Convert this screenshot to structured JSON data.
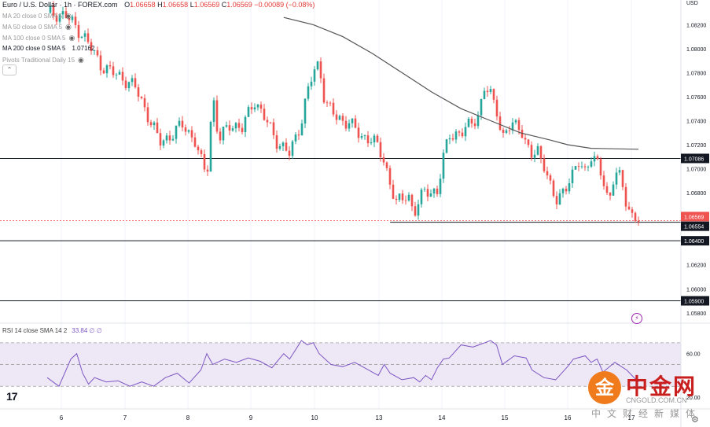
{
  "header": {
    "symbol": "Euro / U.S. Dollar · 1h · FOREX.com",
    "ohlc": [
      {
        "k": "O",
        "v": "1.06658"
      },
      {
        "k": "H",
        "v": "1.06658"
      },
      {
        "k": "L",
        "v": "1.06569"
      },
      {
        "k": "C",
        "v": "1.06569"
      }
    ],
    "change": "−0.00089 (−0.08%)"
  },
  "indicators": [
    {
      "label": "MA 20 close 0 SMA 5",
      "value": ""
    },
    {
      "label": "MA 50 close 0 SMA 5",
      "value": ""
    },
    {
      "label": "MA 100 close 0 SMA 5",
      "value": ""
    },
    {
      "label": "MA 200 close 0 SMA 5",
      "value": "1.07162"
    },
    {
      "label": "Pivots Traditional Daily 15",
      "value": ""
    }
  ],
  "rsi_legend": {
    "label": "RSI 14 close SMA 14 2",
    "value": "33.84 ∅ ∅"
  },
  "currency": "USD",
  "watermark": {
    "mark": "金",
    "name": "中金网",
    "domain": "CNGOLD.COM.CN",
    "sub": "中文财经新媒体"
  },
  "icons": {
    "eye": "eye-icon",
    "collapse": "chevron-up-icon",
    "alert": "bolt-icon",
    "settings": "gear-icon",
    "logo": "tradingview-logo"
  },
  "colors": {
    "up": "#26a69a",
    "down": "#ef5350",
    "ma": "#555555",
    "rsi": "#7e57c2",
    "rsi_band": "#ede7f6"
  },
  "chart_data": {
    "type": "candlestick",
    "price_axis": {
      "ticks": [
        "1.08200",
        "1.08000",
        "1.07800",
        "1.07600",
        "1.07400",
        "1.07200",
        "1.07000",
        "1.06800",
        "1.06600",
        "1.06200",
        "1.06000",
        "1.05800"
      ],
      "ylim": [
        1.0572,
        1.0834
      ]
    },
    "time_axis": {
      "labels": [
        "6",
        "7",
        "8",
        "9",
        "10",
        "13",
        "14",
        "15",
        "16",
        "17"
      ]
    },
    "price_labels": [
      {
        "price": 1.07086,
        "text": "1.07086",
        "style": "dark"
      },
      {
        "price": 1.06569,
        "text": "1.06569",
        "style": "red"
      },
      {
        "price": 1.06554,
        "text": "1.06554",
        "style": "dark"
      },
      {
        "price": 1.064,
        "text": "1.06400",
        "style": "dark"
      },
      {
        "price": 1.059,
        "text": "1.05900",
        "style": "dark"
      }
    ],
    "horizontal_lines": [
      1.07086,
      1.064,
      1.059
    ],
    "support_line": {
      "price": 1.06554,
      "from": 58,
      "to": 100
    },
    "current_price": 1.06569,
    "ma200": [
      [
        40,
        1.0826
      ],
      [
        45,
        1.082
      ],
      [
        50,
        1.081
      ],
      [
        55,
        1.0796
      ],
      [
        60,
        1.078
      ],
      [
        65,
        1.0764
      ],
      [
        70,
        1.075
      ],
      [
        75,
        1.074
      ],
      [
        80,
        1.073
      ],
      [
        85,
        1.0724
      ],
      [
        88,
        1.072
      ],
      [
        92,
        1.0717
      ],
      [
        100,
        1.07162
      ]
    ],
    "path": [
      [
        0,
        1.083
      ],
      [
        3,
        1.0828
      ],
      [
        6,
        1.0812
      ],
      [
        9,
        1.0787
      ],
      [
        11,
        1.078
      ],
      [
        13,
        1.0775
      ],
      [
        15,
        1.0767
      ],
      [
        17,
        1.0745
      ],
      [
        19,
        1.0722
      ],
      [
        21,
        1.0728
      ],
      [
        23,
        1.0737
      ],
      [
        25,
        1.0723
      ],
      [
        26,
        1.0706
      ],
      [
        27,
        1.0694
      ],
      [
        28,
        1.0763
      ],
      [
        29,
        1.0723
      ],
      [
        31,
        1.0738
      ],
      [
        33,
        1.0733
      ],
      [
        35,
        1.0758
      ],
      [
        37,
        1.074
      ],
      [
        39,
        1.0722
      ],
      [
        41,
        1.0712
      ],
      [
        43,
        1.074
      ],
      [
        44,
        1.0763
      ],
      [
        45,
        1.078
      ],
      [
        46,
        1.0788
      ],
      [
        47,
        1.0755
      ],
      [
        49,
        1.0742
      ],
      [
        51,
        1.0739
      ],
      [
        53,
        1.0727
      ],
      [
        55,
        1.0725
      ],
      [
        57,
        1.0707
      ],
      [
        58,
        1.0688
      ],
      [
        59,
        1.0671
      ],
      [
        60,
        1.0674
      ],
      [
        61,
        1.0681
      ],
      [
        62,
        1.0662
      ],
      [
        63,
        1.0673
      ],
      [
        64,
        1.0683
      ],
      [
        66,
        1.068
      ],
      [
        67,
        1.0708
      ],
      [
        68,
        1.073
      ],
      [
        70,
        1.0728
      ],
      [
        72,
        1.0741
      ],
      [
        73,
        1.0745
      ],
      [
        74,
        1.0767
      ],
      [
        75,
        1.0762
      ],
      [
        76,
        1.0752
      ],
      [
        77,
        1.0724
      ],
      [
        78,
        1.0733
      ],
      [
        79,
        1.0738
      ],
      [
        80,
        1.0737
      ],
      [
        81,
        1.0718
      ],
      [
        82,
        1.071
      ],
      [
        83,
        1.0716
      ],
      [
        84,
        1.0705
      ],
      [
        85,
        1.0685
      ],
      [
        86,
        1.0672
      ],
      [
        87,
        1.0681
      ],
      [
        88,
        1.0688
      ],
      [
        89,
        1.0694
      ],
      [
        90,
        1.0707
      ],
      [
        91,
        1.0699
      ],
      [
        92,
        1.071
      ],
      [
        93,
        1.0703
      ],
      [
        94,
        1.0693
      ],
      [
        95,
        1.0672
      ],
      [
        96,
        1.0697
      ],
      [
        97,
        1.0691
      ],
      [
        98,
        1.0672
      ],
      [
        99,
        1.066
      ],
      [
        100,
        1.06569
      ]
    ],
    "rsi": {
      "levels": [
        70,
        50,
        30
      ],
      "ticks": [
        "60.00",
        "20.00"
      ],
      "points": [
        [
          0,
          38
        ],
        [
          2,
          30
        ],
        [
          4,
          55
        ],
        [
          5,
          60
        ],
        [
          6,
          42
        ],
        [
          7,
          32
        ],
        [
          8,
          38
        ],
        [
          10,
          34
        ],
        [
          12,
          35
        ],
        [
          14,
          30
        ],
        [
          16,
          34
        ],
        [
          18,
          30
        ],
        [
          20,
          38
        ],
        [
          22,
          42
        ],
        [
          24,
          33
        ],
        [
          26,
          45
        ],
        [
          27,
          60
        ],
        [
          28,
          50
        ],
        [
          30,
          55
        ],
        [
          32,
          52
        ],
        [
          34,
          56
        ],
        [
          36,
          53
        ],
        [
          38,
          47
        ],
        [
          40,
          60
        ],
        [
          41,
          55
        ],
        [
          43,
          72
        ],
        [
          44,
          68
        ],
        [
          45,
          70
        ],
        [
          46,
          60
        ],
        [
          48,
          50
        ],
        [
          50,
          48
        ],
        [
          52,
          52
        ],
        [
          54,
          46
        ],
        [
          56,
          40
        ],
        [
          57,
          50
        ],
        [
          58,
          42
        ],
        [
          60,
          36
        ],
        [
          62,
          38
        ],
        [
          63,
          34
        ],
        [
          64,
          40
        ],
        [
          65,
          36
        ],
        [
          66,
          47
        ],
        [
          67,
          55
        ],
        [
          68,
          56
        ],
        [
          70,
          68
        ],
        [
          72,
          66
        ],
        [
          73,
          68
        ],
        [
          74,
          70
        ],
        [
          75,
          72
        ],
        [
          76,
          68
        ],
        [
          77,
          50
        ],
        [
          79,
          58
        ],
        [
          81,
          56
        ],
        [
          82,
          45
        ],
        [
          84,
          38
        ],
        [
          86,
          36
        ],
        [
          88,
          48
        ],
        [
          89,
          55
        ],
        [
          91,
          58
        ],
        [
          92,
          52
        ],
        [
          93,
          55
        ],
        [
          94,
          43
        ],
        [
          96,
          52
        ],
        [
          98,
          45
        ],
        [
          100,
          33.84
        ]
      ]
    }
  }
}
